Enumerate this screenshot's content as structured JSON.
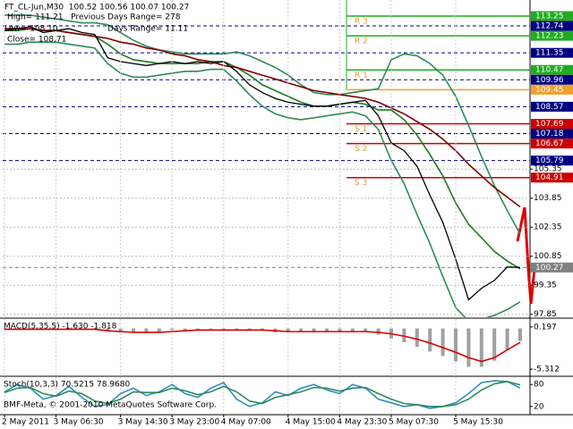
{
  "chart_data": [
    {
      "type": "line",
      "title": "FT_CL-Jun,M30  100.52 100.56 100.07 100.27",
      "annotations": [
        "High= 111.21   Previous Days Range= 278",
        "Low= 108.10",
        "Days Range= 11.11",
        "Close= 108.71"
      ],
      "categories": [
        "2 May 2011",
        null,
        null,
        null,
        "3 May 06:30",
        null,
        null,
        null,
        null,
        "3 May 14:30",
        null,
        null,
        null,
        "3 May 23:00",
        null,
        null,
        null,
        "4 May 07:00",
        null,
        null,
        null,
        null,
        "4 May 15:00",
        null,
        null,
        null,
        "4 May 23:30",
        null,
        null,
        null,
        "5 May 07:30",
        null,
        null,
        null,
        null,
        "5 May 15:30",
        null,
        null,
        null,
        null,
        null
      ],
      "series": [
        {
          "color": "#2e8b57",
          "values": [
            113.3,
            113.3,
            113.3,
            113.2,
            113.1,
            113.0,
            112.9,
            112.9,
            112.8,
            112.4,
            112.0,
            111.7,
            111.5,
            111.4,
            111.3,
            111.3,
            111.3,
            111.3,
            111.4,
            111.2,
            110.9,
            110.6,
            110.2,
            109.7,
            109.3,
            109.2,
            109.2,
            109.3,
            109.4,
            109.5,
            111.0,
            111.3,
            111.2,
            110.8,
            110.2,
            109.1,
            107.6,
            106.0,
            104.5,
            103.2,
            102.0
          ]
        },
        {
          "color": "#2e8b57",
          "values": [
            111.8,
            111.8,
            111.9,
            111.9,
            111.9,
            111.8,
            111.7,
            111.6,
            110.8,
            110.3,
            110.1,
            110.1,
            110.2,
            110.3,
            110.4,
            110.4,
            110.5,
            110.5,
            109.9,
            109.2,
            108.6,
            108.2,
            108.0,
            107.9,
            108.0,
            108.1,
            108.2,
            108.3,
            108.1,
            107.4,
            105.8,
            104.6,
            103.0,
            101.5,
            99.8,
            98.2,
            97.5,
            97.6,
            97.8,
            98.1,
            98.5
          ]
        },
        {
          "color": "#1f7a1f",
          "values": [
            112.5,
            112.5,
            112.6,
            112.5,
            112.5,
            112.4,
            112.3,
            112.2,
            111.8,
            111.3,
            111.0,
            110.9,
            110.8,
            110.8,
            110.8,
            110.8,
            110.9,
            110.9,
            110.6,
            110.2,
            109.7,
            109.4,
            109.1,
            108.8,
            108.6,
            108.6,
            108.7,
            108.8,
            108.7,
            108.4,
            108.4,
            107.9,
            107.1,
            106.1,
            105.0,
            103.6,
            102.5,
            101.8,
            101.1,
            100.6,
            100.2
          ]
        },
        {
          "color": "#800000",
          "values": [
            112.6,
            112.6,
            112.6,
            112.5,
            112.5,
            112.4,
            112.3,
            112.2,
            112.1,
            111.9,
            111.8,
            111.6,
            111.5,
            111.3,
            111.2,
            111.0,
            110.9,
            110.7,
            110.6,
            110.4,
            110.2,
            110.0,
            109.8,
            109.6,
            109.4,
            109.3,
            109.2,
            109.1,
            109.0,
            108.8,
            108.5,
            108.2,
            107.8,
            107.4,
            106.9,
            106.3,
            105.6,
            105.0,
            104.4,
            103.9,
            103.4
          ]
        },
        {
          "color": "#000000",
          "values": [
            112.5,
            112.6,
            112.7,
            112.4,
            112.5,
            112.6,
            112.4,
            112.3,
            111.1,
            110.9,
            110.8,
            110.7,
            110.8,
            110.9,
            110.8,
            110.9,
            110.8,
            110.9,
            110.4,
            109.7,
            109.3,
            109.0,
            108.8,
            108.7,
            108.6,
            108.6,
            108.7,
            108.8,
            108.9,
            108.1,
            106.7,
            106.3,
            105.5,
            104.0,
            102.6,
            100.7,
            98.6,
            99.2,
            99.6,
            100.3,
            100.27
          ]
        }
      ],
      "ylim": [
        97.7,
        114.08
      ],
      "yticks": [
        97.85,
        99.35,
        100.85,
        102.35,
        103.85,
        105.35
      ],
      "grid": true,
      "levels": [
        {
          "value": 113.25,
          "color": "#22aa22",
          "label": "R 3"
        },
        {
          "value": 112.74,
          "color": "#000080",
          "dashed": true
        },
        {
          "value": 112.23,
          "color": "#22aa22",
          "label": "R 2"
        },
        {
          "value": 111.35,
          "color": "#000080",
          "dashed": true
        },
        {
          "value": 110.47,
          "color": "#22aa22",
          "label": "R 1"
        },
        {
          "value": 109.96,
          "color": "#000080",
          "dashed": true
        },
        {
          "value": 109.45,
          "color": "#f0a030"
        },
        {
          "value": 108.57,
          "color": "#000080",
          "dashed": true
        },
        {
          "value": 107.69,
          "color": "#cc0000",
          "label": "S 1"
        },
        {
          "value": 107.18,
          "color": "#000080",
          "dashed": true
        },
        {
          "value": 106.67,
          "color": "#cc0000",
          "label": "S 2"
        },
        {
          "value": 105.79,
          "color": "#000080",
          "dashed": true
        },
        {
          "value": 104.91,
          "color": "#cc0000",
          "label": "S 3"
        },
        {
          "value": 100.27,
          "color": "#808080",
          "dashed": true
        }
      ]
    },
    {
      "type": "bar",
      "title": "MACD(5,35,5) -1.630 -1.818",
      "series": [
        {
          "color": "#a0a0a0",
          "values": [
            -0.1,
            -0.1,
            -0.1,
            -0.1,
            -0.1,
            -0.1,
            -0.1,
            -0.1,
            -0.4,
            -0.5,
            -0.6,
            -0.6,
            -0.5,
            -0.2,
            -0.2,
            -0.2,
            -0.2,
            -0.2,
            -0.2,
            -0.2,
            -0.2,
            -0.5,
            -0.5,
            -0.5,
            -0.5,
            -0.5,
            -0.5,
            -0.5,
            -0.5,
            -0.8,
            -1.3,
            -1.8,
            -2.4,
            -3.0,
            -3.6,
            -4.3,
            -5.0,
            -5.0,
            -4.2,
            -2.9,
            -1.63
          ]
        },
        {
          "color": "#dd0000",
          "type": "line",
          "values": [
            -0.1,
            -0.1,
            -0.1,
            -0.1,
            -0.1,
            -0.1,
            -0.1,
            -0.1,
            -0.3,
            -0.4,
            -0.5,
            -0.5,
            -0.5,
            -0.4,
            -0.3,
            -0.2,
            -0.2,
            -0.2,
            -0.2,
            -0.2,
            -0.2,
            -0.3,
            -0.4,
            -0.4,
            -0.4,
            -0.4,
            -0.4,
            -0.4,
            -0.4,
            -0.5,
            -0.7,
            -1.0,
            -1.4,
            -1.9,
            -2.5,
            -3.1,
            -3.8,
            -4.3,
            -3.8,
            -2.8,
            -1.818
          ]
        }
      ],
      "ylim": [
        -6.12,
        1.23
      ],
      "yticks": [
        0.197,
        -5.312
      ]
    },
    {
      "type": "line",
      "title": "Stoch(10,3,3) 70.5215 78.9680",
      "annotations": [
        "BMF-Meta, © 2001-2010 MetaQuotes Software Corp."
      ],
      "series": [
        {
          "color": "#2f8fbf",
          "values": [
            60,
            80,
            70,
            40,
            50,
            75,
            45,
            20,
            25,
            55,
            70,
            50,
            60,
            80,
            55,
            45,
            70,
            85,
            40,
            20,
            30,
            60,
            50,
            70,
            80,
            65,
            55,
            80,
            70,
            40,
            30,
            20,
            25,
            15,
            20,
            30,
            55,
            85,
            90,
            88,
            70.5215
          ]
        },
        {
          "color": "#2e8b57",
          "values": [
            58,
            70,
            72,
            55,
            48,
            62,
            55,
            35,
            28,
            40,
            60,
            58,
            58,
            70,
            63,
            52,
            60,
            75,
            60,
            35,
            28,
            45,
            52,
            60,
            72,
            70,
            62,
            70,
            72,
            55,
            40,
            28,
            25,
            20,
            20,
            25,
            40,
            65,
            82,
            88,
            78.968
          ]
        }
      ],
      "ylim": [
        0,
        100
      ],
      "yticks": [
        20,
        80
      ]
    }
  ]
}
